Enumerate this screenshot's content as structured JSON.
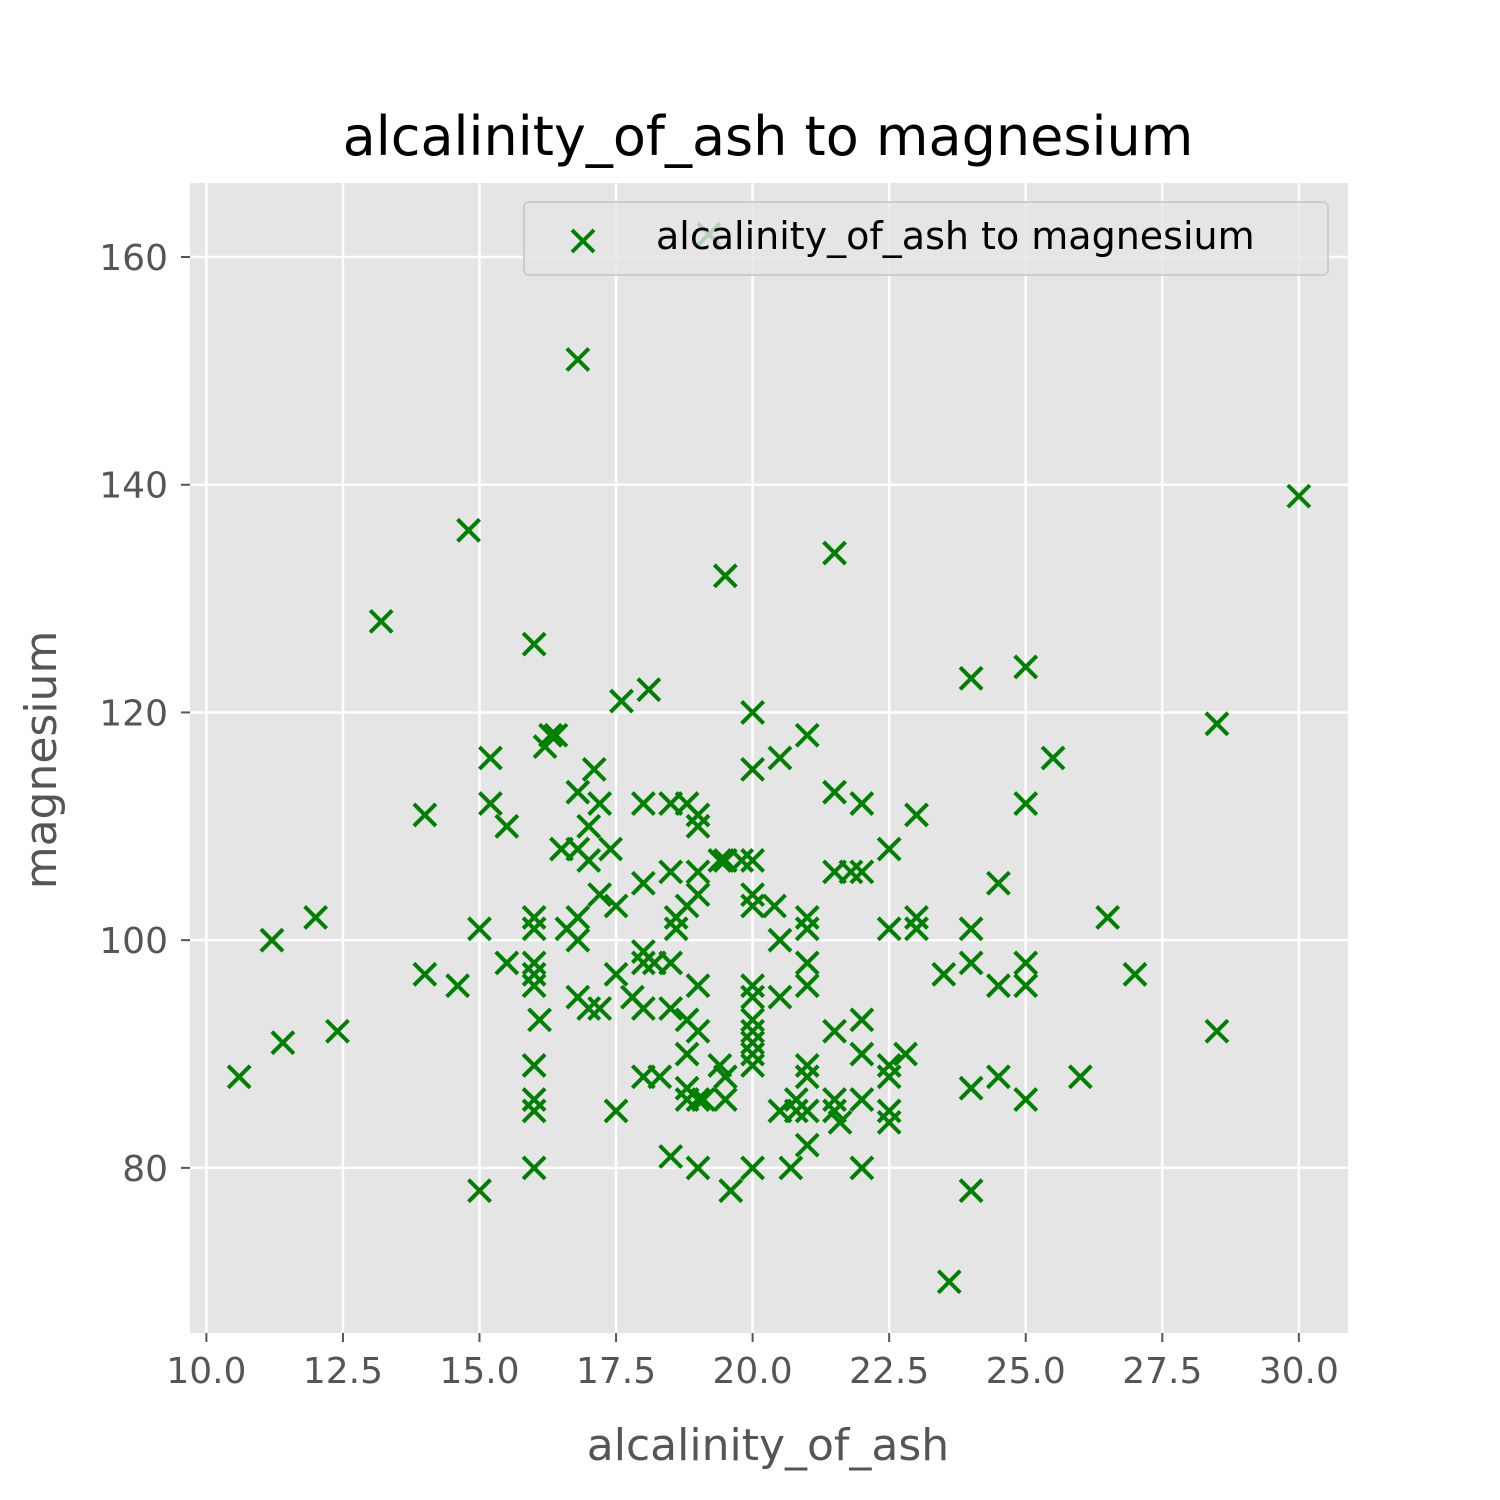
{
  "chart_data": {
    "type": "scatter",
    "title": "alcalinity_of_ash to magnesium",
    "xlabel": "alcalinity_of_ash",
    "ylabel": "magnesium",
    "xlim": [
      9.7,
      30.9
    ],
    "ylim": [
      65.5,
      166.5
    ],
    "xticks": [
      10.0,
      12.5,
      15.0,
      17.5,
      20.0,
      22.5,
      25.0,
      27.5,
      30.0
    ],
    "xtick_labels": [
      "10.0",
      "12.5",
      "15.0",
      "17.5",
      "20.0",
      "22.5",
      "25.0",
      "27.5",
      "30.0"
    ],
    "yticks": [
      80,
      100,
      120,
      140,
      160
    ],
    "ytick_labels": [
      "80",
      "100",
      "120",
      "140",
      "160"
    ],
    "grid": true,
    "legend_position": "upper-right",
    "marker": "x",
    "color": "#008000",
    "series": [
      {
        "name": "alcalinity_of_ash to magnesium",
        "points": [
          [
            10.6,
            88
          ],
          [
            11.2,
            100
          ],
          [
            11.4,
            91
          ],
          [
            12.0,
            102
          ],
          [
            12.4,
            92
          ],
          [
            13.2,
            128
          ],
          [
            14.0,
            111
          ],
          [
            14.0,
            97
          ],
          [
            14.6,
            96
          ],
          [
            14.8,
            136
          ],
          [
            15.0,
            101
          ],
          [
            15.0,
            78
          ],
          [
            15.2,
            112
          ],
          [
            15.2,
            116
          ],
          [
            15.5,
            110
          ],
          [
            15.5,
            98
          ],
          [
            16.0,
            126
          ],
          [
            16.0,
            102
          ],
          [
            16.0,
            101
          ],
          [
            16.0,
            98
          ],
          [
            16.0,
            97
          ],
          [
            16.0,
            96
          ],
          [
            16.0,
            89
          ],
          [
            16.0,
            86
          ],
          [
            16.0,
            85
          ],
          [
            16.0,
            80
          ],
          [
            16.1,
            93
          ],
          [
            16.2,
            117
          ],
          [
            16.3,
            118
          ],
          [
            16.4,
            118
          ],
          [
            16.5,
            108
          ],
          [
            16.6,
            101
          ],
          [
            16.8,
            151
          ],
          [
            16.8,
            113
          ],
          [
            16.8,
            102
          ],
          [
            16.8,
            100
          ],
          [
            16.8,
            95
          ],
          [
            16.8,
            108
          ],
          [
            17.0,
            110
          ],
          [
            17.0,
            107
          ],
          [
            17.0,
            94
          ],
          [
            17.1,
            115
          ],
          [
            17.2,
            112
          ],
          [
            17.2,
            104
          ],
          [
            17.2,
            94
          ],
          [
            17.4,
            108
          ],
          [
            17.5,
            103
          ],
          [
            17.5,
            97
          ],
          [
            17.5,
            85
          ],
          [
            17.6,
            121
          ],
          [
            17.8,
            95
          ],
          [
            18.0,
            112
          ],
          [
            18.0,
            105
          ],
          [
            18.0,
            99
          ],
          [
            18.0,
            98
          ],
          [
            18.0,
            94
          ],
          [
            18.0,
            88
          ],
          [
            18.1,
            122
          ],
          [
            18.2,
            98
          ],
          [
            18.3,
            88
          ],
          [
            18.5,
            112
          ],
          [
            18.5,
            106
          ],
          [
            18.5,
            98
          ],
          [
            18.5,
            94
          ],
          [
            18.5,
            81
          ],
          [
            18.6,
            102
          ],
          [
            18.6,
            101
          ],
          [
            18.8,
            112
          ],
          [
            18.8,
            103
          ],
          [
            18.8,
            93
          ],
          [
            18.8,
            90
          ],
          [
            18.8,
            87
          ],
          [
            18.8,
            86
          ],
          [
            19.0,
            111
          ],
          [
            19.0,
            110
          ],
          [
            19.0,
            106
          ],
          [
            19.0,
            104
          ],
          [
            19.0,
            96
          ],
          [
            19.0,
            92
          ],
          [
            19.0,
            86
          ],
          [
            19.0,
            80
          ],
          [
            19.1,
            86
          ],
          [
            19.2,
            162
          ],
          [
            19.4,
            107
          ],
          [
            19.4,
            89
          ],
          [
            19.5,
            132
          ],
          [
            19.5,
            107
          ],
          [
            19.5,
            88
          ],
          [
            19.5,
            86
          ],
          [
            19.6,
            78
          ],
          [
            19.8,
            107
          ],
          [
            20.0,
            120
          ],
          [
            20.0,
            115
          ],
          [
            20.0,
            107
          ],
          [
            20.0,
            104
          ],
          [
            20.0,
            103
          ],
          [
            20.0,
            96
          ],
          [
            20.0,
            95
          ],
          [
            20.0,
            93
          ],
          [
            20.0,
            92
          ],
          [
            20.0,
            91
          ],
          [
            20.0,
            90
          ],
          [
            20.0,
            89
          ],
          [
            20.0,
            80
          ],
          [
            20.4,
            103
          ],
          [
            20.5,
            116
          ],
          [
            20.5,
            100
          ],
          [
            20.5,
            95
          ],
          [
            20.5,
            85
          ],
          [
            20.7,
            80
          ],
          [
            20.8,
            86
          ],
          [
            20.8,
            85
          ],
          [
            21.0,
            118
          ],
          [
            21.0,
            102
          ],
          [
            21.0,
            101
          ],
          [
            21.0,
            98
          ],
          [
            21.0,
            96
          ],
          [
            21.0,
            89
          ],
          [
            21.0,
            88
          ],
          [
            21.0,
            85
          ],
          [
            21.0,
            82
          ],
          [
            21.5,
            134
          ],
          [
            21.5,
            113
          ],
          [
            21.5,
            106
          ],
          [
            21.5,
            92
          ],
          [
            21.5,
            86
          ],
          [
            21.5,
            85
          ],
          [
            21.6,
            84
          ],
          [
            21.8,
            106
          ],
          [
            22.0,
            112
          ],
          [
            22.0,
            106
          ],
          [
            22.0,
            93
          ],
          [
            22.0,
            90
          ],
          [
            22.0,
            86
          ],
          [
            22.0,
            80
          ],
          [
            22.5,
            108
          ],
          [
            22.5,
            101
          ],
          [
            22.5,
            89
          ],
          [
            22.5,
            88
          ],
          [
            22.5,
            85
          ],
          [
            22.5,
            84
          ],
          [
            22.8,
            90
          ],
          [
            23.0,
            111
          ],
          [
            23.0,
            102
          ],
          [
            23.0,
            101
          ],
          [
            23.5,
            97
          ],
          [
            23.6,
            70
          ],
          [
            24.0,
            123
          ],
          [
            24.0,
            101
          ],
          [
            24.0,
            98
          ],
          [
            24.0,
            87
          ],
          [
            24.0,
            78
          ],
          [
            24.5,
            105
          ],
          [
            24.5,
            96
          ],
          [
            24.5,
            88
          ],
          [
            25.0,
            124
          ],
          [
            25.0,
            112
          ],
          [
            25.0,
            98
          ],
          [
            25.0,
            96
          ],
          [
            25.0,
            86
          ],
          [
            25.5,
            116
          ],
          [
            26.0,
            88
          ],
          [
            26.5,
            102
          ],
          [
            27.0,
            97
          ],
          [
            28.5,
            119
          ],
          [
            28.5,
            92
          ],
          [
            30.0,
            139
          ]
        ]
      }
    ]
  }
}
